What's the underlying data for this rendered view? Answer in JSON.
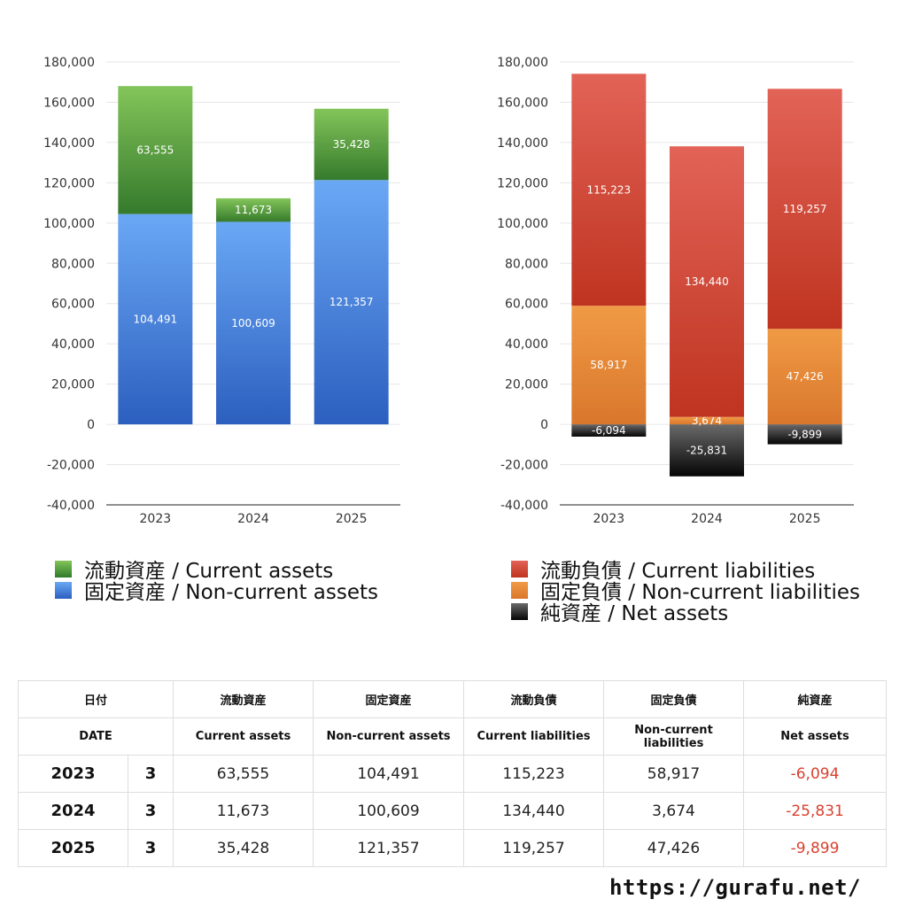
{
  "chart_data": [
    {
      "type": "bar",
      "stacked": true,
      "categories": [
        "2023",
        "2024",
        "2025"
      ],
      "ylim": [
        -40000,
        180000
      ],
      "ytick_step": 20000,
      "ytick_labels": [
        "180,000",
        "160,000",
        "140,000",
        "120,000",
        "100,000",
        "80,000",
        "60,000",
        "40,000",
        "20,000",
        "0",
        "-20,000",
        "-40,000"
      ],
      "series": [
        {
          "name": "固定資産 / Non-current assets",
          "values": [
            104491,
            100609,
            121357
          ],
          "labels": [
            "104,491",
            "100,609",
            "121,357"
          ],
          "color_top": "#6aa8f5",
          "color_bottom": "#2c5fbf"
        },
        {
          "name": "流動資産 / Current assets",
          "values": [
            63555,
            11673,
            35428
          ],
          "labels": [
            "63,555",
            "11,673",
            "35,428"
          ],
          "color_top": "#84c55a",
          "color_bottom": "#357a2c"
        }
      ],
      "grid": true
    },
    {
      "type": "bar",
      "stacked": true,
      "categories": [
        "2023",
        "2024",
        "2025"
      ],
      "ylim": [
        -40000,
        180000
      ],
      "ytick_step": 20000,
      "ytick_labels": [
        "180,000",
        "160,000",
        "140,000",
        "120,000",
        "100,000",
        "80,000",
        "60,000",
        "40,000",
        "20,000",
        "0",
        "-20,000",
        "-40,000"
      ],
      "series": [
        {
          "name": "純資産 / Net assets",
          "values": [
            -6094,
            -25831,
            -9899
          ],
          "labels": [
            "-6,094",
            "-25,831",
            "-9,899"
          ],
          "color_top": "#6a6a6a",
          "color_bottom": "#050505"
        },
        {
          "name": "固定負債 / Non-current liabilities",
          "values": [
            58917,
            3674,
            47426
          ],
          "labels": [
            "58,917",
            "3,674",
            "47,426"
          ],
          "color_top": "#f09a45",
          "color_bottom": "#d9772c"
        },
        {
          "name": "流動負債 / Current liabilities",
          "values": [
            115223,
            134440,
            119257
          ],
          "labels": [
            "115,223",
            "134,440",
            "119,257"
          ],
          "color_top": "#e26357",
          "color_bottom": "#bf3420"
        }
      ],
      "grid": true
    }
  ],
  "legend_left": [
    {
      "label": "流動資産 / Current assets",
      "color_top": "#84c55a",
      "color_bottom": "#2f7a2a"
    },
    {
      "label": "固定資産 / Non-current assets",
      "color_top": "#6aa8f5",
      "color_bottom": "#2c5fbf"
    }
  ],
  "legend_right": [
    {
      "label": "流動負債 / Current liabilities",
      "color_top": "#e26357",
      "color_bottom": "#bf3420"
    },
    {
      "label": "固定負債 / Non-current liabilities",
      "color_top": "#f09a45",
      "color_bottom": "#d9772c"
    },
    {
      "label": "純資産 / Net assets",
      "color_top": "#6a6a6a",
      "color_bottom": "#050505"
    }
  ],
  "table": {
    "header_jp": [
      "日付",
      "流動資産",
      "固定資産",
      "流動負債",
      "固定負債",
      "純資産"
    ],
    "header_en": [
      "DATE",
      "Current assets",
      "Non-current assets",
      "Current liabilities",
      "Non-current liabilities",
      "Net assets"
    ],
    "rows": [
      {
        "year": "2023",
        "period": "3",
        "current_assets": "63,555",
        "noncurrent_assets": "104,491",
        "current_liabilities": "115,223",
        "noncurrent_liabilities": "58,917",
        "net_assets": "-6,094"
      },
      {
        "year": "2024",
        "period": "3",
        "current_assets": "11,673",
        "noncurrent_assets": "100,609",
        "current_liabilities": "134,440",
        "noncurrent_liabilities": "3,674",
        "net_assets": "-25,831"
      },
      {
        "year": "2025",
        "period": "3",
        "current_assets": "35,428",
        "noncurrent_assets": "121,357",
        "current_liabilities": "119,257",
        "noncurrent_liabilities": "47,426",
        "net_assets": "-9,899"
      }
    ],
    "negative_color": "#d9412f"
  },
  "footer": {
    "url": "https://gurafu.net/"
  }
}
